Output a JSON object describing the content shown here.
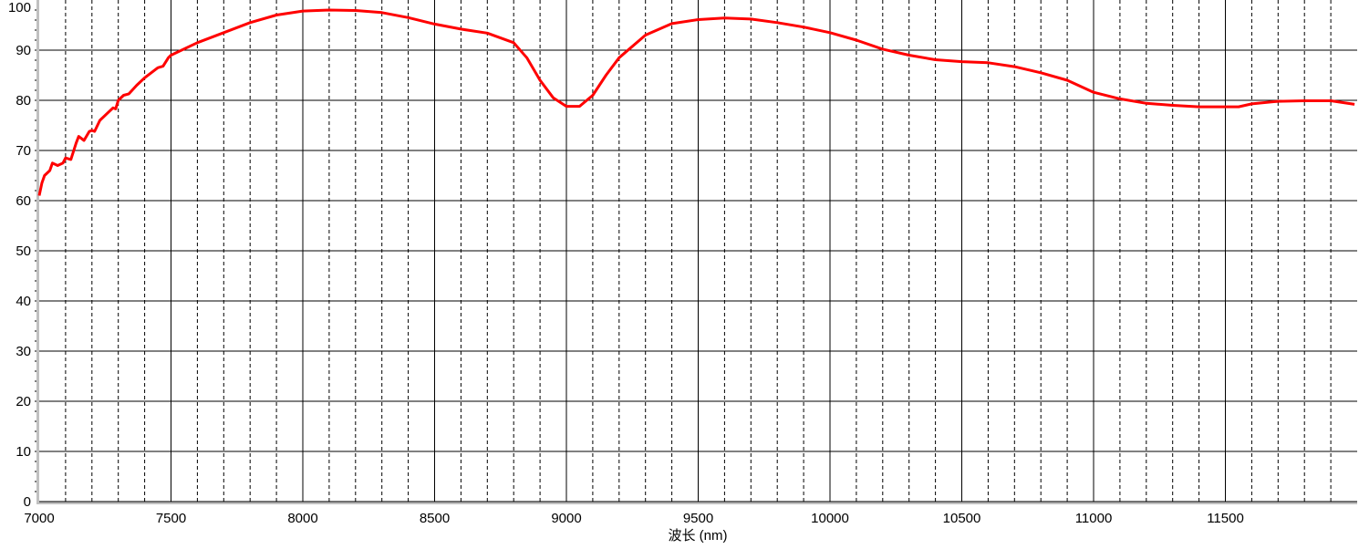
{
  "chart_data": {
    "type": "line",
    "title": "",
    "xlabel": "波长 (nm)",
    "ylabel": "",
    "xlim": [
      7000,
      12000
    ],
    "ylim": [
      0,
      100
    ],
    "x_ticks": [
      7000,
      7500,
      8000,
      8500,
      9000,
      9500,
      10000,
      10500,
      11000,
      11500
    ],
    "x_tick_labels": [
      "7000",
      "7500",
      "8000",
      "8500",
      "9000",
      "9500",
      "10000",
      "10500",
      "11000",
      "11500"
    ],
    "y_ticks": [
      0,
      10,
      20,
      30,
      40,
      50,
      60,
      70,
      80,
      90,
      100
    ],
    "y_tick_labels": [
      "0",
      "10",
      "20",
      "30",
      "40",
      "50",
      "60",
      "70",
      "80",
      "90",
      "100"
    ],
    "grid": true,
    "line_color": "#ff0000",
    "series": [
      {
        "x": [
          7000,
          7010,
          7020,
          7040,
          7050,
          7070,
          7090,
          7100,
          7120,
          7140,
          7150,
          7170,
          7190,
          7200,
          7210,
          7230,
          7260,
          7280,
          7290,
          7300,
          7320,
          7340,
          7370,
          7400,
          7450,
          7470,
          7490,
          7500,
          7600,
          7700,
          7800,
          7900,
          8000,
          8100,
          8200,
          8300,
          8400,
          8500,
          8600,
          8700,
          8800,
          8850,
          8900,
          8950,
          9000,
          9050,
          9100,
          9150,
          9200,
          9300,
          9400,
          9500,
          9600,
          9700,
          9800,
          9900,
          10000,
          10100,
          10200,
          10300,
          10400,
          10500,
          10600,
          10700,
          10800,
          10900,
          11000,
          11100,
          11200,
          11300,
          11400,
          11500,
          11550,
          11600,
          11700,
          11800,
          11900,
          11990
        ],
        "y": [
          61,
          63.5,
          65,
          66,
          67.5,
          67,
          67.5,
          68.5,
          68.2,
          71.5,
          72.8,
          72,
          73.8,
          74,
          73.8,
          76,
          77.5,
          78.5,
          78.3,
          80,
          81,
          81.3,
          83,
          84.5,
          86.5,
          86.8,
          88.5,
          89,
          91.5,
          93.5,
          95.5,
          97,
          97.8,
          98,
          97.9,
          97.5,
          96.5,
          95.2,
          94.2,
          93.4,
          91.5,
          88.5,
          84,
          80.5,
          78.8,
          78.8,
          81,
          85,
          88.5,
          93,
          95.3,
          96.1,
          96.4,
          96.2,
          95.5,
          94.6,
          93.5,
          92,
          90.2,
          89,
          88.1,
          87.7,
          87.5,
          86.7,
          85.5,
          84,
          81.6,
          80.3,
          79.4,
          79,
          78.7,
          78.7,
          78.7,
          79.3,
          79.8,
          79.9,
          79.9,
          79.2
        ]
      }
    ]
  }
}
